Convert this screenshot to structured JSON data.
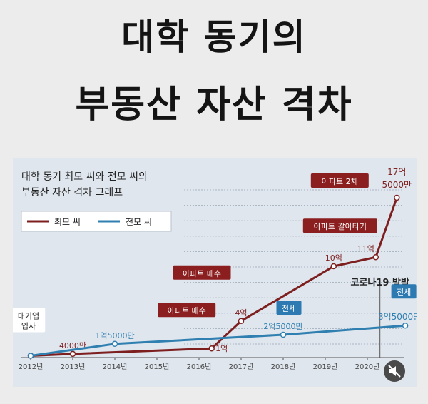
{
  "headline": {
    "line1": "대학 동기의",
    "line2": "부동산 자산 격차"
  },
  "chart_data": {
    "type": "line",
    "title_lines": [
      "대학 동기 최모 씨와 전모 씨의",
      "부동산 자산 격차 그래프"
    ],
    "categories": [
      "2012년",
      "2013년",
      "2014년",
      "2015년",
      "2016년",
      "2017년",
      "2018년",
      "2019년",
      "2020년"
    ],
    "unit": "억원",
    "legend": {
      "position": "top-left"
    },
    "grid": true,
    "series": [
      {
        "name": "최모 씨",
        "color": "#7d1f1f",
        "points": [
          {
            "x": 2012.0,
            "y": 0.2,
            "label": ""
          },
          {
            "x": 2013.0,
            "y": 0.4,
            "label": "4000만"
          },
          {
            "x": 2016.3,
            "y": 1.0,
            "label": "1억"
          },
          {
            "x": 2017.0,
            "y": 4.0,
            "label": "4억"
          },
          {
            "x": 2019.2,
            "y": 10.0,
            "label": "10억"
          },
          {
            "x": 2020.2,
            "y": 11.0,
            "label": "11억"
          },
          {
            "x": 2020.7,
            "y": 17.5,
            "label": "17억 5000만"
          }
        ]
      },
      {
        "name": "전모 씨",
        "color": "#2f7fb0",
        "points": [
          {
            "x": 2012.0,
            "y": 0.2,
            "label": ""
          },
          {
            "x": 2014.0,
            "y": 1.5,
            "label": "1억5000만"
          },
          {
            "x": 2018.0,
            "y": 2.5,
            "label": "2억5000만"
          },
          {
            "x": 2020.9,
            "y": 3.5,
            "label": "3억5000만"
          }
        ]
      }
    ],
    "annotations": [
      {
        "text": "대기업\n입사",
        "style": "plain",
        "x": 2012.0,
        "y": 0.2
      },
      {
        "text": "아파트 매수",
        "style": "red",
        "x": 2016.3,
        "y": 1.0
      },
      {
        "text": "아파트 매수",
        "style": "red",
        "x": 2017.0,
        "y": 4.0
      },
      {
        "text": "아파트 갈아타기",
        "style": "red",
        "x": 2020.2,
        "y": 11.0
      },
      {
        "text": "아파트 2채",
        "style": "red",
        "x": 2020.7,
        "y": 17.5
      },
      {
        "text": "전세",
        "style": "blue",
        "x": 2018.0,
        "y": 2.5
      },
      {
        "text": "전세",
        "style": "blue",
        "x": 2020.9,
        "y": 3.5
      }
    ],
    "event_marker": {
      "text": "코로나19 발발",
      "x": 2020.3
    }
  }
}
